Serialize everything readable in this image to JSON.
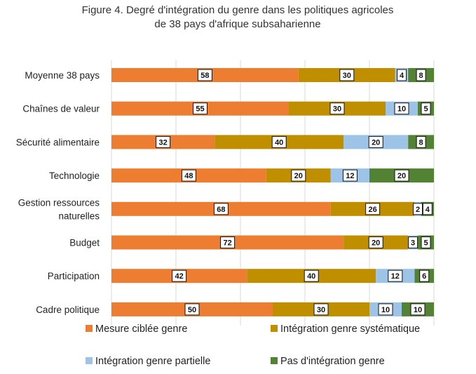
{
  "chart_data": {
    "type": "bar",
    "orientation": "horizontal",
    "stacked": true,
    "title_lines": [
      "Figure 4. Degré d'intégration du genre dans les politiques agricoles",
      "de 38 pays d'afrique subsaharienne"
    ],
    "xlim": [
      0,
      100
    ],
    "grid": true,
    "legend_position": "bottom",
    "categories": [
      [
        "Moyenne 38 pays"
      ],
      [
        "Chaînes de valeur"
      ],
      [
        "Sécurité alimentaire"
      ],
      [
        "Technologie"
      ],
      [
        "Gestion ressources",
        "naturelles"
      ],
      [
        "Budget"
      ],
      [
        "Participation"
      ],
      [
        "Cadre politique"
      ]
    ],
    "series": [
      {
        "name": "Mesure ciblée genre",
        "color": "#ed7d31",
        "values": [
          58,
          55,
          32,
          48,
          68,
          72,
          42,
          50
        ]
      },
      {
        "name": "Intégration genre systématique",
        "color": "#bf8f00",
        "values": [
          30,
          30,
          40,
          20,
          26,
          20,
          40,
          30
        ]
      },
      {
        "name": "Intégration genre partielle",
        "color": "#9dc3e6",
        "values": [
          4,
          10,
          20,
          12,
          2,
          3,
          12,
          10
        ]
      },
      {
        "name": "Pas d'intégration genre",
        "color": "#548235",
        "values": [
          8,
          5,
          8,
          20,
          4,
          5,
          6,
          10
        ]
      }
    ],
    "data_labels": [
      [
        "58",
        "30",
        "4",
        "8"
      ],
      [
        "55",
        "30",
        "10",
        "5"
      ],
      [
        "32",
        "40",
        "20",
        "8"
      ],
      [
        "48",
        "20",
        "12",
        "20"
      ],
      [
        "68",
        "26",
        "2",
        "4"
      ],
      [
        "72",
        "20",
        "3",
        "5"
      ],
      [
        "42",
        "40",
        "12",
        "6"
      ],
      [
        "50",
        "30",
        "10",
        "10"
      ]
    ]
  }
}
